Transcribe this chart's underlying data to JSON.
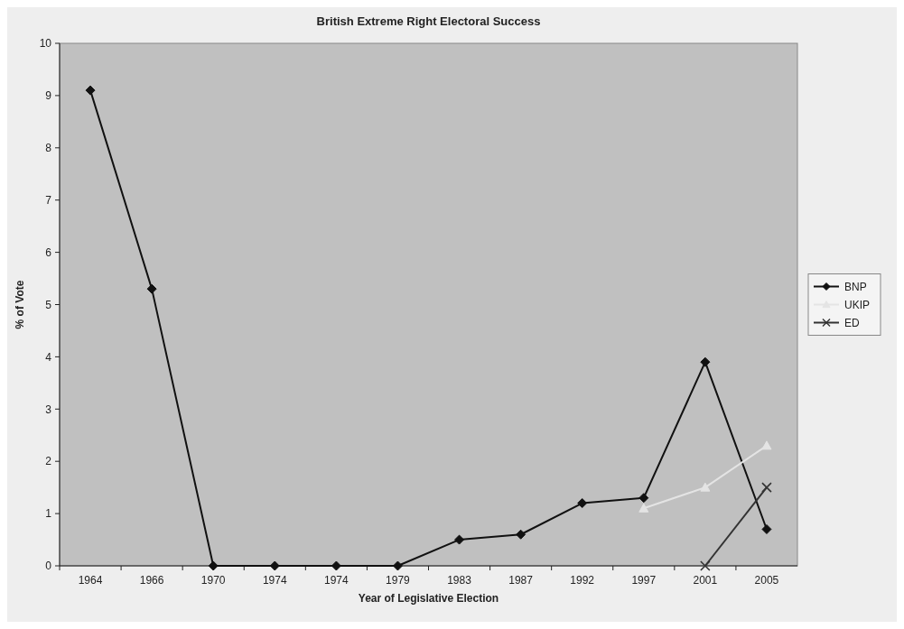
{
  "chart_data": {
    "type": "line",
    "title": "British Extreme Right Electoral Success",
    "xlabel": "Year of Legislative Election",
    "ylabel": "% of Vote",
    "categories": [
      "1964",
      "1966",
      "1970",
      "1974",
      "1974",
      "1979",
      "1983",
      "1987",
      "1992",
      "1997",
      "2001",
      "2005"
    ],
    "series": [
      {
        "name": "BNP",
        "color": "#111111",
        "marker": "diamond",
        "values": [
          9.1,
          5.3,
          0,
          0,
          0,
          0,
          0.5,
          0.6,
          1.2,
          1.3,
          3.9,
          0.7
        ]
      },
      {
        "name": "UKIP",
        "color": "#e4e4e4",
        "marker": "triangle",
        "values": [
          null,
          null,
          null,
          null,
          null,
          null,
          null,
          null,
          null,
          1.1,
          1.5,
          2.3
        ]
      },
      {
        "name": "ED",
        "color": "#333333",
        "marker": "cross",
        "values": [
          null,
          null,
          null,
          null,
          null,
          null,
          null,
          null,
          null,
          null,
          0,
          1.5
        ]
      }
    ],
    "ylim": [
      0,
      10
    ],
    "yticks": [
      0,
      1,
      2,
      3,
      4,
      5,
      6,
      7,
      8,
      9,
      10
    ],
    "grid": false,
    "legend": "right",
    "line_style": "solid"
  }
}
